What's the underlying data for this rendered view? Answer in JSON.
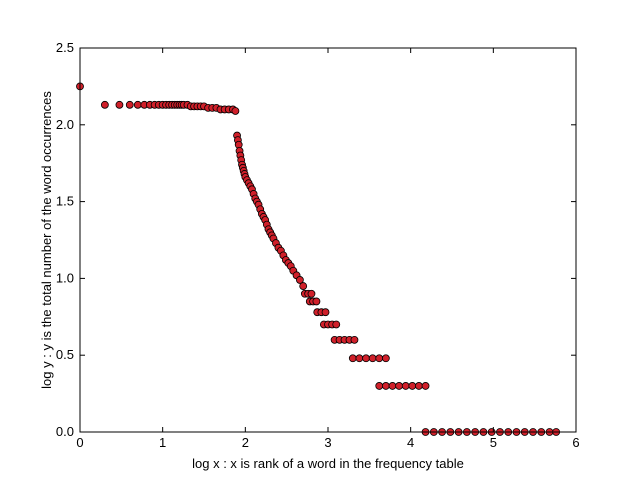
{
  "chart_data": {
    "type": "scatter",
    "title": "",
    "xlabel": "log x : x is rank of a word in the frequency table",
    "ylabel": "log y : y is the total number of the word occurrences",
    "xlim": [
      0,
      6
    ],
    "ylim": [
      0,
      2.5
    ],
    "xticks": [
      0,
      1,
      2,
      3,
      4,
      5,
      6
    ],
    "yticks": [
      0.0,
      0.5,
      1.0,
      1.5,
      2.0,
      2.5
    ],
    "xtick_labels": [
      "0",
      "1",
      "2",
      "3",
      "4",
      "5",
      "6"
    ],
    "ytick_labels": [
      "0.0",
      "0.5",
      "1.0",
      "1.5",
      "2.0",
      "2.5"
    ],
    "grid": false,
    "marker": {
      "fill": "#d0202a",
      "edge": "#000000"
    },
    "series": [
      {
        "points": [
          [
            0.0,
            2.25
          ],
          [
            0.301,
            2.13
          ],
          [
            0.477,
            2.13
          ],
          [
            0.602,
            2.13
          ],
          [
            0.699,
            2.13
          ],
          [
            0.778,
            2.13
          ],
          [
            0.845,
            2.13
          ],
          [
            0.903,
            2.13
          ],
          [
            0.954,
            2.13
          ],
          [
            1.0,
            2.13
          ],
          [
            1.041,
            2.13
          ],
          [
            1.079,
            2.13
          ],
          [
            1.114,
            2.13
          ],
          [
            1.146,
            2.13
          ],
          [
            1.176,
            2.13
          ],
          [
            1.204,
            2.13
          ],
          [
            1.23,
            2.13
          ],
          [
            1.255,
            2.13
          ],
          [
            1.3,
            2.13
          ],
          [
            1.34,
            2.12
          ],
          [
            1.38,
            2.12
          ],
          [
            1.42,
            2.12
          ],
          [
            1.46,
            2.12
          ],
          [
            1.5,
            2.12
          ],
          [
            1.55,
            2.11
          ],
          [
            1.6,
            2.11
          ],
          [
            1.65,
            2.11
          ],
          [
            1.7,
            2.1
          ],
          [
            1.75,
            2.1
          ],
          [
            1.8,
            2.1
          ],
          [
            1.85,
            2.1
          ],
          [
            1.88,
            2.09
          ],
          [
            1.9,
            1.93
          ],
          [
            1.91,
            1.9
          ],
          [
            1.92,
            1.87
          ],
          [
            1.93,
            1.83
          ],
          [
            1.94,
            1.8
          ],
          [
            1.95,
            1.77
          ],
          [
            1.96,
            1.74
          ],
          [
            1.97,
            1.72
          ],
          [
            1.98,
            1.7
          ],
          [
            1.99,
            1.68
          ],
          [
            2.0,
            1.66
          ],
          [
            2.02,
            1.64
          ],
          [
            2.04,
            1.62
          ],
          [
            2.06,
            1.6
          ],
          [
            2.08,
            1.58
          ],
          [
            2.1,
            1.55
          ],
          [
            2.12,
            1.52
          ],
          [
            2.14,
            1.5
          ],
          [
            2.16,
            1.48
          ],
          [
            2.18,
            1.45
          ],
          [
            2.2,
            1.42
          ],
          [
            2.22,
            1.4
          ],
          [
            2.24,
            1.38
          ],
          [
            2.26,
            1.35
          ],
          [
            2.28,
            1.32
          ],
          [
            2.3,
            1.3
          ],
          [
            2.32,
            1.28
          ],
          [
            2.34,
            1.26
          ],
          [
            2.37,
            1.23
          ],
          [
            2.4,
            1.2
          ],
          [
            2.43,
            1.18
          ],
          [
            2.46,
            1.15
          ],
          [
            2.49,
            1.12
          ],
          [
            2.52,
            1.1
          ],
          [
            2.55,
            1.08
          ],
          [
            2.58,
            1.05
          ],
          [
            2.62,
            1.02
          ],
          [
            2.66,
            0.99
          ],
          [
            2.7,
            0.95
          ],
          [
            2.72,
            0.9
          ],
          [
            2.76,
            0.9
          ],
          [
            2.8,
            0.9
          ],
          [
            2.78,
            0.85
          ],
          [
            2.82,
            0.85
          ],
          [
            2.86,
            0.85
          ],
          [
            2.87,
            0.78
          ],
          [
            2.92,
            0.78
          ],
          [
            2.97,
            0.78
          ],
          [
            2.95,
            0.7
          ],
          [
            3.0,
            0.7
          ],
          [
            3.05,
            0.7
          ],
          [
            3.1,
            0.7
          ],
          [
            3.08,
            0.6
          ],
          [
            3.14,
            0.6
          ],
          [
            3.2,
            0.6
          ],
          [
            3.26,
            0.6
          ],
          [
            3.32,
            0.6
          ],
          [
            3.3,
            0.48
          ],
          [
            3.38,
            0.48
          ],
          [
            3.46,
            0.48
          ],
          [
            3.54,
            0.48
          ],
          [
            3.62,
            0.48
          ],
          [
            3.7,
            0.48
          ],
          [
            3.62,
            0.3
          ],
          [
            3.7,
            0.3
          ],
          [
            3.78,
            0.3
          ],
          [
            3.86,
            0.3
          ],
          [
            3.94,
            0.3
          ],
          [
            4.02,
            0.3
          ],
          [
            4.1,
            0.3
          ],
          [
            4.18,
            0.3
          ],
          [
            4.18,
            0.0
          ],
          [
            4.28,
            0.0
          ],
          [
            4.38,
            0.0
          ],
          [
            4.48,
            0.0
          ],
          [
            4.58,
            0.0
          ],
          [
            4.68,
            0.0
          ],
          [
            4.78,
            0.0
          ],
          [
            4.88,
            0.0
          ],
          [
            4.98,
            0.0
          ],
          [
            5.08,
            0.0
          ],
          [
            5.18,
            0.0
          ],
          [
            5.28,
            0.0
          ],
          [
            5.38,
            0.0
          ],
          [
            5.48,
            0.0
          ],
          [
            5.58,
            0.0
          ],
          [
            5.68,
            0.0
          ],
          [
            5.76,
            0.0
          ]
        ]
      }
    ]
  }
}
